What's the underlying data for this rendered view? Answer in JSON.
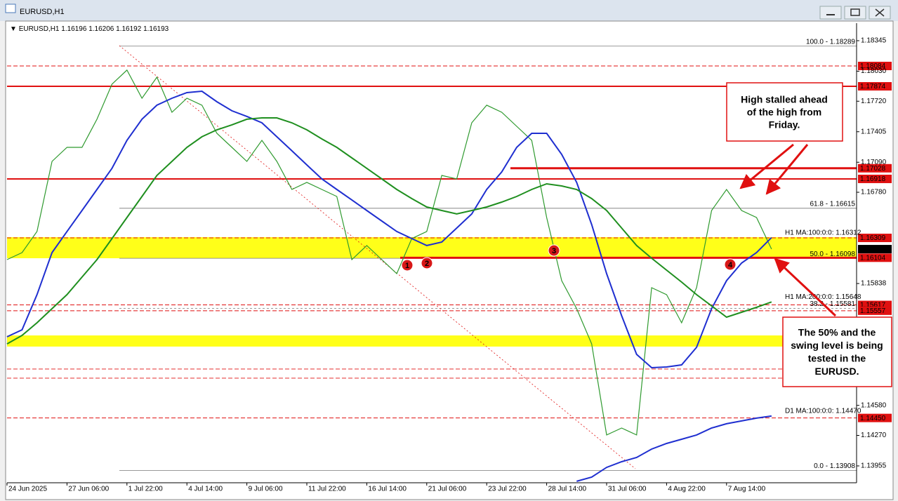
{
  "chart_data": {
    "type": "line",
    "window_title": "EURUSD,H1",
    "title": "EURUSD,H1",
    "ohlc": [
      1.16196,
      1.16206,
      1.16192,
      1.16193
    ],
    "categories": [
      "24 Jun 2025",
      null,
      null,
      null,
      "27 Jun 06:00",
      null,
      null,
      null,
      "1 Jul 22:00",
      null,
      null,
      null,
      "4 Jul 14:00",
      null,
      null,
      null,
      "9 Jul 06:00",
      null,
      null,
      null,
      "11 Jul 22:00",
      null,
      null,
      null,
      "16 Jul 14:00",
      null,
      null,
      null,
      "21 Jul 06:00",
      null,
      null,
      null,
      "23 Jul 22:00",
      null,
      null,
      null,
      "28 Jul 14:00",
      null,
      null,
      null,
      "31 Jul 06:00",
      null,
      null,
      null,
      "4 Aug 22:00",
      null,
      null,
      null,
      "7 Aug 14:00",
      null,
      null,
      null
    ],
    "series": [
      {
        "color": "#2f9a2f",
        "values": [
          1.16085,
          1.16157,
          1.16375,
          1.17099,
          1.17244,
          1.17244,
          1.17534,
          1.17896,
          1.18041,
          1.17751,
          1.17968,
          1.17606,
          1.17751,
          1.17679,
          1.17389,
          1.17244,
          1.17099,
          1.17316,
          1.17099,
          1.16809,
          1.16882,
          1.16809,
          1.16737,
          1.16085,
          1.1623,
          1.16085,
          1.1594,
          1.16302,
          1.16375,
          1.16954,
          1.16918,
          1.17497,
          1.17679,
          1.17606,
          1.17461,
          1.17316,
          1.16519,
          1.15867,
          1.15578,
          1.15215,
          1.14274,
          1.14346,
          1.14274,
          1.15795,
          1.15723,
          1.15433,
          1.15795,
          1.16592,
          1.16809,
          1.16592,
          1.16519,
          1.16193
        ]
      },
      {
        "color": "#1f2fd0",
        "label": "H1 MA:100:0:0: 1.16312",
        "values": [
          1.15288,
          1.1536,
          1.15723,
          1.16157,
          1.16375,
          1.16592,
          1.16809,
          1.17027,
          1.17316,
          1.17534,
          1.17679,
          1.17751,
          1.17809,
          1.17823,
          1.17715,
          1.17621,
          1.17563,
          1.17497,
          1.17353,
          1.17208,
          1.17063,
          1.16918,
          1.16809,
          1.16701,
          1.16592,
          1.16483,
          1.16375,
          1.16302,
          1.1623,
          1.16266,
          1.16411,
          1.16556,
          1.16809,
          1.1699,
          1.17244,
          1.17389,
          1.17389,
          1.17171,
          1.16882,
          1.16447,
          1.1594,
          1.15505,
          1.15107,
          1.14969,
          1.14976,
          1.14998,
          1.15179,
          1.15578,
          1.15867,
          1.16049,
          1.16157,
          1.16312
        ]
      },
      {
        "color": "#1f8f1f",
        "label": "H1 MA:200:0:0: 1.15648",
        "values": [
          1.15215,
          1.15302,
          1.15433,
          1.15578,
          1.15723,
          1.15904,
          1.16085,
          1.16302,
          1.16519,
          1.16737,
          1.16954,
          1.17099,
          1.17244,
          1.17353,
          1.17425,
          1.17476,
          1.17534,
          1.17548,
          1.17548,
          1.17497,
          1.17425,
          1.17331,
          1.17244,
          1.17135,
          1.17027,
          1.16918,
          1.16809,
          1.16715,
          1.16628,
          1.16592,
          1.16556,
          1.16592,
          1.16628,
          1.16679,
          1.16737,
          1.16809,
          1.16867,
          1.16845,
          1.16809,
          1.16715,
          1.16592,
          1.16411,
          1.1623,
          1.16099,
          1.15976,
          1.15853,
          1.15723,
          1.15607,
          1.15491,
          1.15541,
          1.15592,
          1.15648
        ]
      },
      {
        "color": "#1f2fd0",
        "label": "D1 MA:100:0:0: 1.14470",
        "values": [
          null,
          null,
          null,
          null,
          null,
          null,
          null,
          null,
          null,
          null,
          null,
          null,
          null,
          null,
          null,
          null,
          null,
          null,
          null,
          null,
          null,
          null,
          null,
          null,
          null,
          null,
          null,
          null,
          null,
          null,
          null,
          null,
          null,
          null,
          null,
          null,
          null,
          null,
          1.13796,
          1.13839,
          1.1394,
          1.13998,
          1.14042,
          1.14129,
          1.14187,
          1.1423,
          1.14274,
          1.14346,
          1.1439,
          1.14419,
          1.14448,
          1.1447
        ]
      }
    ],
    "ylim": [
      1.13781,
      1.18526
    ],
    "yticks": [
      1.18345,
      {
        "value": 1.1803,
        "label": "1.18030"
      },
      {
        "value": 1.1772,
        "label": "1.17720"
      },
      1.17405,
      {
        "value": 1.1709,
        "label": "1.17090"
      },
      {
        "value": 1.1678,
        "label": "1.16780"
      },
      1.15838,
      {
        "value": 1.1458,
        "label": "1.14580"
      },
      {
        "value": 1.1427,
        "label": "1.14270"
      },
      1.13955
    ],
    "grid": false,
    "zones": [
      [
        1.16317,
        1.16099
      ],
      [
        1.15302,
        1.15187
      ]
    ],
    "zone_color": "#ffff00",
    "fib_levels": [
      {
        "value": 1.18289,
        "label": "100.0 - 1.18289"
      },
      {
        "value": 1.16615,
        "label": "61.8 - 1.16615"
      },
      {
        "value": 1.16098,
        "label": "50.0 - 1.16098"
      },
      {
        "value": 1.15581,
        "label": "38.2 - 1.15581"
      },
      {
        "value": 1.13908,
        "label": "0.0 - 1.13908"
      }
    ],
    "levels": [
      {
        "value": 1.18084,
        "label": "1.18084",
        "style": "dashed",
        "width": 1
      },
      {
        "value": 1.17874,
        "label": "1.17874",
        "style": "solid",
        "width": 2
      },
      {
        "value": 1.17028,
        "label": "1.17028",
        "style": "solid",
        "width": 3
      },
      {
        "value": 1.16918,
        "label": "1.16918",
        "style": "solid",
        "width": 2
      },
      {
        "value": 1.16309,
        "label": "1.16309",
        "style": "dashed",
        "width": 1
      },
      {
        "value": 1.16104,
        "label": "1.16104",
        "style": "solid",
        "width": 3
      },
      {
        "value": 1.15617,
        "label": "1.15617",
        "style": "dashed",
        "width": 1
      },
      {
        "value": 1.15557,
        "label": "1.15557",
        "style": "dashed",
        "width": 1
      },
      {
        "value": 1.1445,
        "label": "1.14450",
        "style": "dashed",
        "width": 1
      }
    ],
    "dashed_lines": [
      1.14955,
      1.14861
    ],
    "level_color": "#e01010",
    "last_price": 1.16193,
    "annotations": [
      [
        "High stalled ahead",
        "of the high from",
        "Friday."
      ],
      [
        "The 50% and the",
        "swing level is being",
        "tested in the",
        "EURUSD."
      ]
    ],
    "markers": [
      "1",
      "2",
      "3",
      "4"
    ]
  }
}
